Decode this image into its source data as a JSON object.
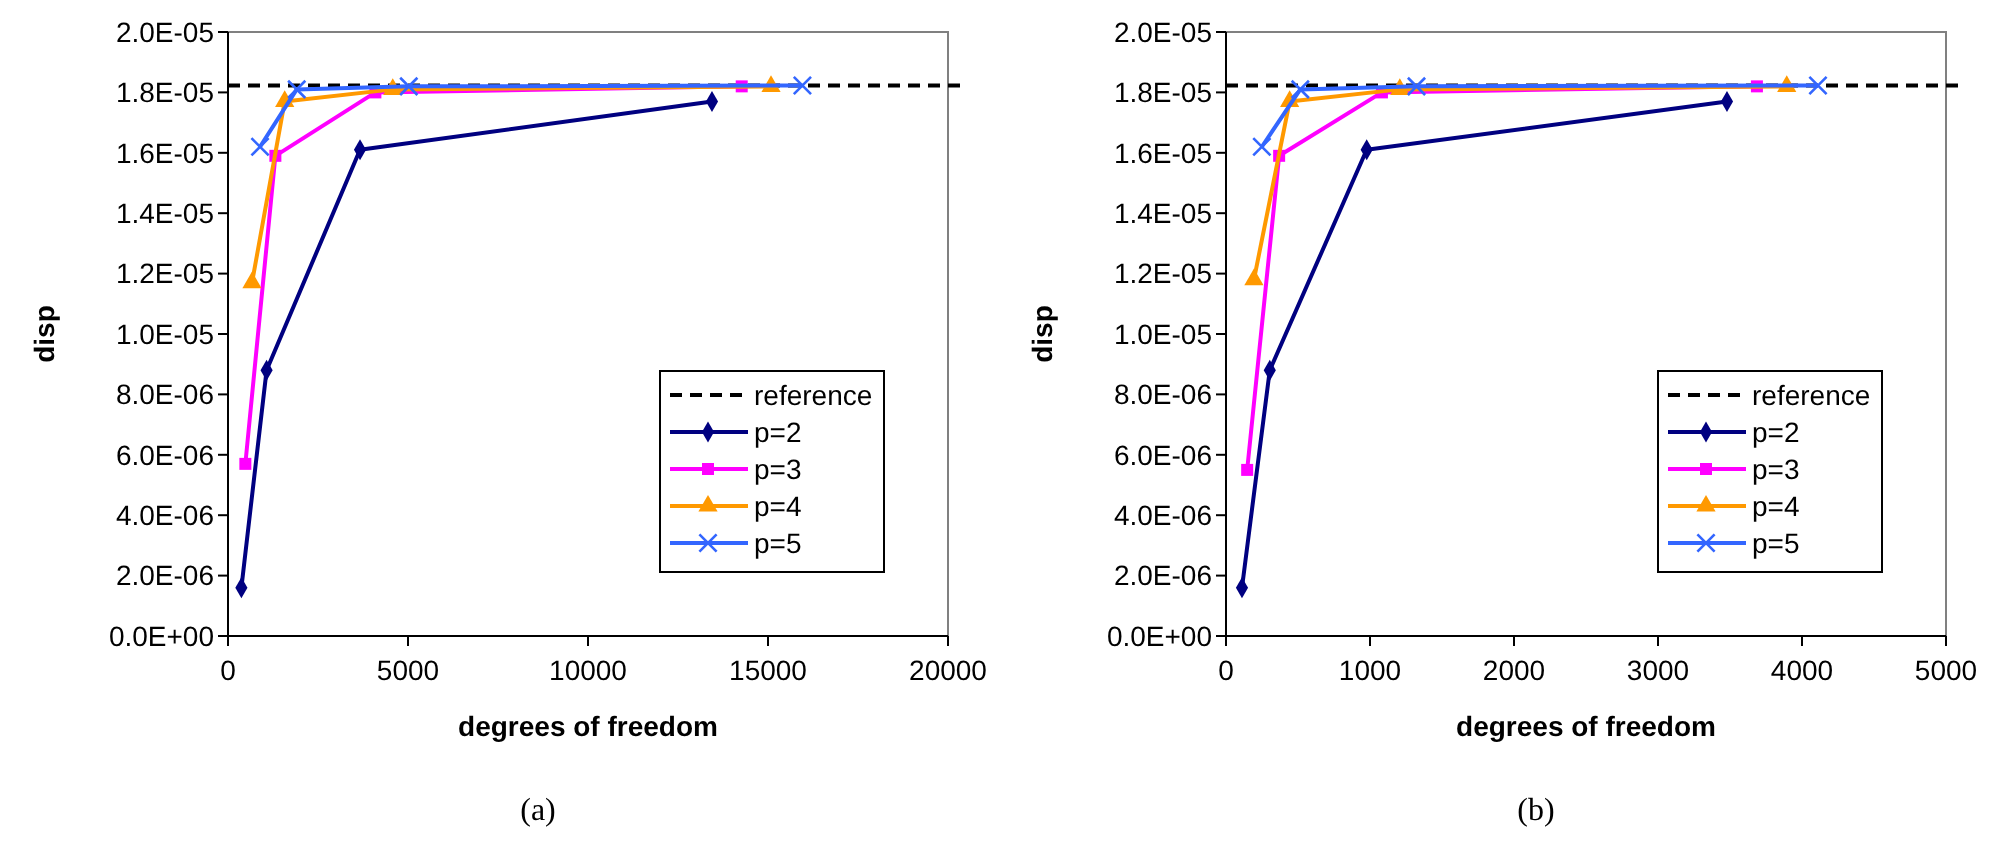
{
  "chart_data": [
    {
      "type": "line",
      "xlabel": "degrees of freedom",
      "ylabel": "disp",
      "annotations": [
        "(a)"
      ],
      "xlim": [
        0,
        20000
      ],
      "xticks": [
        0,
        5000,
        10000,
        15000,
        20000
      ],
      "ylim": [
        0,
        2e-05
      ],
      "yticks": [
        {
          "value": 0,
          "label": "0.0E+00"
        },
        {
          "value": 2e-06,
          "label": "2.0E-06"
        },
        {
          "value": 4e-06,
          "label": "4.0E-06"
        },
        {
          "value": 6e-06,
          "label": "6.0E-06"
        },
        {
          "value": 8e-06,
          "label": "8.0E-06"
        },
        {
          "value": 1e-05,
          "label": "1.0E-05"
        },
        {
          "value": 1.2e-05,
          "label": "1.2E-05"
        },
        {
          "value": 1.4e-05,
          "label": "1.4E-05"
        },
        {
          "value": 1.6e-05,
          "label": "1.6E-05"
        },
        {
          "value": 1.8e-05,
          "label": "1.8E-05"
        },
        {
          "value": 2e-05,
          "label": "2.0E-05"
        }
      ],
      "grid": false,
      "legend": "bottom right",
      "ref_lines": [
        {
          "axis": "y",
          "value": 1.823e-05,
          "label": "reference",
          "color": "#000000",
          "line_style": "dashed"
        }
      ],
      "series": [
        {
          "name": "p=2",
          "color": "#000080",
          "marker": "diamond",
          "x": [
            372,
            1072,
            3667,
            13444
          ],
          "values": [
            1.6e-06,
            8.8e-06,
            1.61e-05,
            1.77e-05
          ]
        },
        {
          "name": "p=3",
          "color": "#ff00ff",
          "marker": "square",
          "x": [
            482,
            1316,
            4094,
            14270
          ],
          "values": [
            5.7e-06,
            1.59e-05,
            1.8e-05,
            1.82e-05
          ]
        },
        {
          "name": "p=4",
          "color": "#ff9900",
          "marker": "triangle",
          "x": [
            667,
            1575,
            4577,
            15084
          ],
          "values": [
            1.17e-05,
            1.77e-05,
            1.81e-05,
            1.82e-05
          ]
        },
        {
          "name": "p=5",
          "color": "#3366ff",
          "marker": "cross",
          "x": [
            890,
            1909,
            5022,
            15956
          ],
          "values": [
            1.62e-05,
            1.81e-05,
            1.82e-05,
            1.823e-05
          ]
        }
      ]
    },
    {
      "type": "line",
      "xlabel": "degrees of freedom",
      "ylabel": "disp",
      "annotations": [
        "(b)"
      ],
      "xlim": [
        0,
        5000
      ],
      "xticks": [
        0,
        1000,
        2000,
        3000,
        4000,
        5000
      ],
      "ylim": [
        0,
        2e-05
      ],
      "yticks": [
        {
          "value": 0,
          "label": "0.0E+00"
        },
        {
          "value": 2e-06,
          "label": "2.0E-06"
        },
        {
          "value": 4e-06,
          "label": "4.0E-06"
        },
        {
          "value": 6e-06,
          "label": "6.0E-06"
        },
        {
          "value": 8e-06,
          "label": "8.0E-06"
        },
        {
          "value": 1e-05,
          "label": "1.0E-05"
        },
        {
          "value": 1.2e-05,
          "label": "1.2E-05"
        },
        {
          "value": 1.4e-05,
          "label": "1.4E-05"
        },
        {
          "value": 1.6e-05,
          "label": "1.6E-05"
        },
        {
          "value": 1.8e-05,
          "label": "1.8E-05"
        },
        {
          "value": 2e-05,
          "label": "2.0E-05"
        }
      ],
      "grid": false,
      "legend": "bottom right",
      "ref_lines": [
        {
          "axis": "y",
          "value": 1.823e-05,
          "label": "reference",
          "color": "#000000",
          "line_style": "dashed"
        }
      ],
      "series": [
        {
          "name": "p=2",
          "color": "#000080",
          "marker": "diamond",
          "x": [
            111,
            304,
            977,
            3479
          ],
          "values": [
            1.6e-06,
            8.8e-06,
            1.61e-05,
            1.77e-05
          ]
        },
        {
          "name": "p=3",
          "color": "#ff00ff",
          "marker": "square",
          "x": [
            147,
            369,
            1083,
            3687
          ],
          "values": [
            5.5e-06,
            1.59e-05,
            1.8e-05,
            1.82e-05
          ]
        },
        {
          "name": "p=4",
          "color": "#ff9900",
          "marker": "triangle",
          "x": [
            194,
            442,
            1207,
            3894
          ],
          "values": [
            1.18e-05,
            1.77e-05,
            1.81e-05,
            1.82e-05
          ]
        },
        {
          "name": "p=5",
          "color": "#3366ff",
          "marker": "cross",
          "x": [
            249,
            516,
            1323,
            4111
          ],
          "values": [
            1.62e-05,
            1.81e-05,
            1.82e-05,
            1.823e-05
          ]
        }
      ]
    }
  ]
}
